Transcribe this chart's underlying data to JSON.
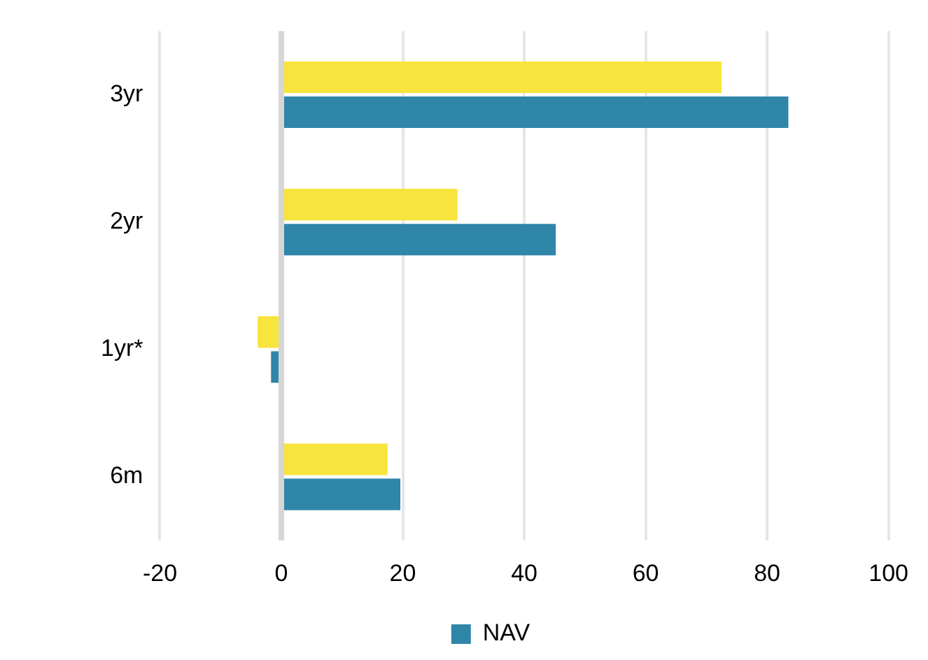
{
  "chart_data": {
    "type": "bar",
    "orientation": "horizontal",
    "categories": [
      "3yr",
      "2yr",
      "1yr*",
      "6m"
    ],
    "series": [
      {
        "color": "#f7e43c",
        "values": [
          72.5,
          29,
          -3.9,
          17.5
        ]
      },
      {
        "name": "NAV",
        "color": "#2f86a9",
        "values": [
          83.5,
          45.2,
          -1.7,
          19.6
        ]
      }
    ],
    "xlim": [
      -20,
      100
    ],
    "xticks": [
      -20,
      0,
      20,
      40,
      60,
      80,
      100
    ],
    "grid": "x",
    "legend": "bottom"
  }
}
